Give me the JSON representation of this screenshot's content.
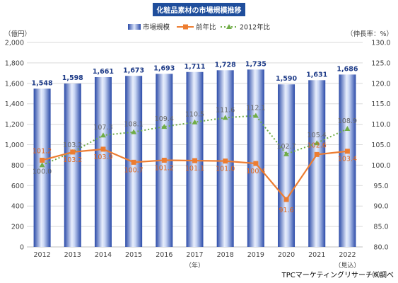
{
  "chart_data": {
    "type": "bar",
    "title": "化粧品素材の市場規模推移",
    "categories": [
      "2012",
      "2013",
      "2014",
      "2015",
      "2016",
      "2017",
      "2018",
      "2019",
      "2020",
      "2021",
      "2022"
    ],
    "category_note": {
      "index": 10,
      "text": "（見込）"
    },
    "xlabel": "（年）",
    "ylabel_left": "（億円）",
    "ylabel_right": "（伸長率：%）",
    "ylim_left": [
      0,
      2000
    ],
    "ylim_right": [
      80,
      130
    ],
    "left_ticks": [
      "0",
      "200",
      "400",
      "600",
      "800",
      "1,000",
      "1,200",
      "1,400",
      "1,600",
      "1,800",
      "2,000"
    ],
    "right_ticks": [
      "80.0",
      "85.0",
      "90.0",
      "95.0",
      "100.0",
      "105.0",
      "110.0",
      "115.0",
      "120.0",
      "125.0",
      "130.0"
    ],
    "legend_position": "top",
    "grid": true,
    "series": [
      {
        "name": "市場規模",
        "kind": "bar",
        "axis": "left",
        "color": "#3a5db8",
        "values": [
          1548,
          1598,
          1661,
          1673,
          1693,
          1711,
          1728,
          1735,
          1590,
          1631,
          1686
        ],
        "labels": [
          "1,548",
          "1,598",
          "1,661",
          "1,673",
          "1,693",
          "1,711",
          "1,728",
          "1,735",
          "1,590",
          "1,631",
          "1,686"
        ]
      },
      {
        "name": "前年比",
        "kind": "line",
        "axis": "right",
        "color": "#ed7d31",
        "values": [
          101.2,
          103.2,
          103.9,
          100.7,
          101.2,
          101.1,
          101.0,
          100.4,
          91.6,
          102.6,
          103.4
        ],
        "labels": [
          "101.2",
          "103.2",
          "103.9",
          "100.7",
          "101.2",
          "101.1",
          "101.0",
          "100.4",
          "91.6",
          "102.6",
          "103.4"
        ]
      },
      {
        "name": "2012年比",
        "kind": "line",
        "axis": "right",
        "color": "#70ad47",
        "values": [
          100.0,
          103.2,
          107.3,
          108.1,
          109.4,
          110.5,
          111.6,
          112.1,
          102.7,
          105.4,
          108.9
        ],
        "labels": [
          "100.0",
          "103.2",
          "107.3",
          "108.1",
          "109.4",
          "110.5",
          "111.6",
          "112.1",
          "102.7",
          "105.4",
          "108.9"
        ]
      }
    ]
  },
  "source": "TPCマーケティングリサーチ㈱調べ"
}
